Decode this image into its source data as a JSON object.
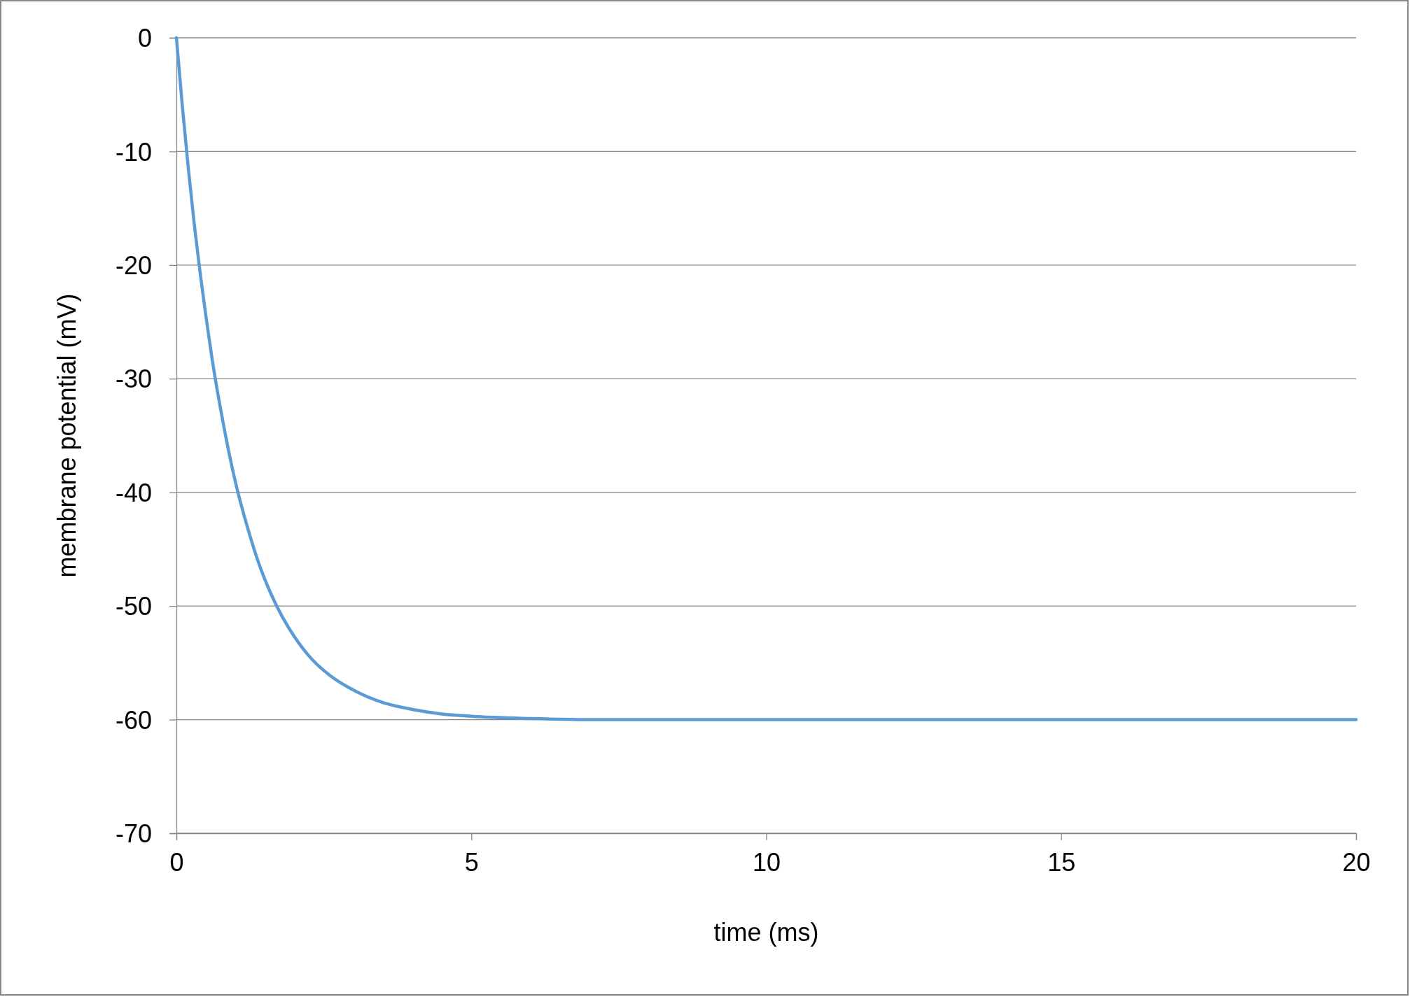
{
  "chart_data": {
    "type": "line",
    "xlabel": "time (ms)",
    "ylabel": "membrane potential (mV)",
    "xlim": [
      0,
      20
    ],
    "xticks": [
      0,
      5,
      10,
      15,
      20
    ],
    "ylim": [
      -70,
      0
    ],
    "yticks": [
      -70,
      -60,
      -50,
      -40,
      -30,
      -20,
      -10,
      0
    ],
    "grid": "y",
    "marker": "none",
    "line_style": "solid",
    "series": [
      {
        "color": "#5b9bd5",
        "x": [
          0,
          0.1,
          0.2,
          0.3,
          0.4,
          0.5,
          0.6,
          0.8,
          1,
          1.2,
          1.4,
          1.6,
          1.8,
          2,
          2.3,
          2.6,
          3,
          3.5,
          4,
          4.5,
          5,
          6,
          7,
          10,
          15,
          20
        ],
        "values": [
          0,
          -6,
          -11.4,
          -16.3,
          -20.6,
          -24.5,
          -28.1,
          -34.1,
          -39.1,
          -43,
          -46.3,
          -48.9,
          -51,
          -52.7,
          -54.7,
          -56.1,
          -57.4,
          -58.5,
          -59.1,
          -59.5,
          -59.7,
          -59.9,
          -60,
          -60,
          -60,
          -60
        ]
      }
    ]
  }
}
